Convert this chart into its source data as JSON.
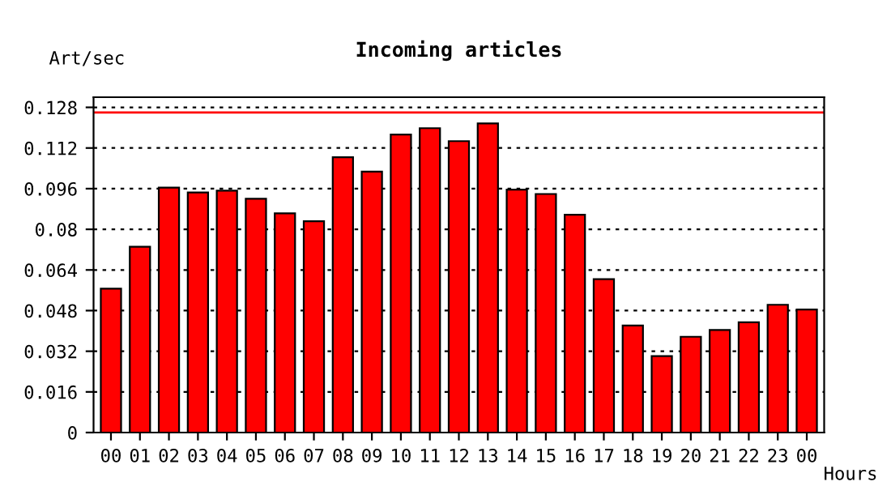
{
  "chart_data": {
    "type": "bar",
    "title": "Incoming articles",
    "ylabel": "Art/sec",
    "xlabel": "Hours",
    "categories": [
      "00",
      "01",
      "02",
      "03",
      "04",
      "05",
      "06",
      "07",
      "08",
      "09",
      "10",
      "11",
      "12",
      "13",
      "14",
      "15",
      "16",
      "17",
      "18",
      "19",
      "20",
      "21",
      "22",
      "23",
      "00"
    ],
    "values": [
      0.0566,
      0.0731,
      0.0964,
      0.0945,
      0.0952,
      0.092,
      0.0863,
      0.0832,
      0.1084,
      0.1027,
      0.1173,
      0.1198,
      0.1147,
      0.1217,
      0.0956,
      0.0939,
      0.0857,
      0.0604,
      0.0421,
      0.0301,
      0.0377,
      0.0404,
      0.0434,
      0.0503,
      0.0484
    ],
    "color": "#ff0000",
    "ylim": [
      0,
      0.132
    ],
    "yticks": [
      0,
      0.016,
      0.032,
      0.048,
      0.064,
      0.08,
      0.096,
      0.112,
      0.128
    ],
    "ref_lines": [
      {
        "axis": "y",
        "value": 0.126,
        "color": "#ff0000",
        "line_style": "solid"
      }
    ],
    "grid": "y"
  }
}
